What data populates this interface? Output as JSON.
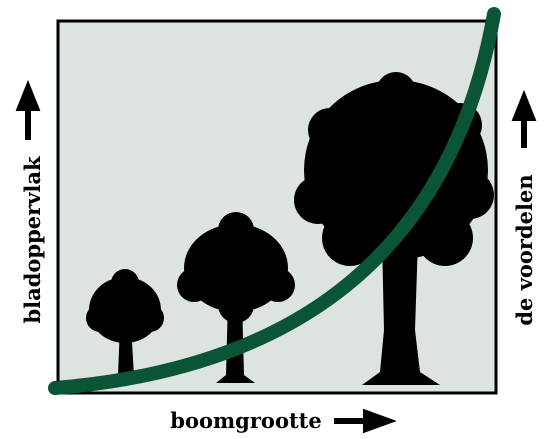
{
  "labels": {
    "y_axis": "bladoppervlak",
    "right": "de voordelen",
    "x_axis": "boomgrootte"
  }
}
